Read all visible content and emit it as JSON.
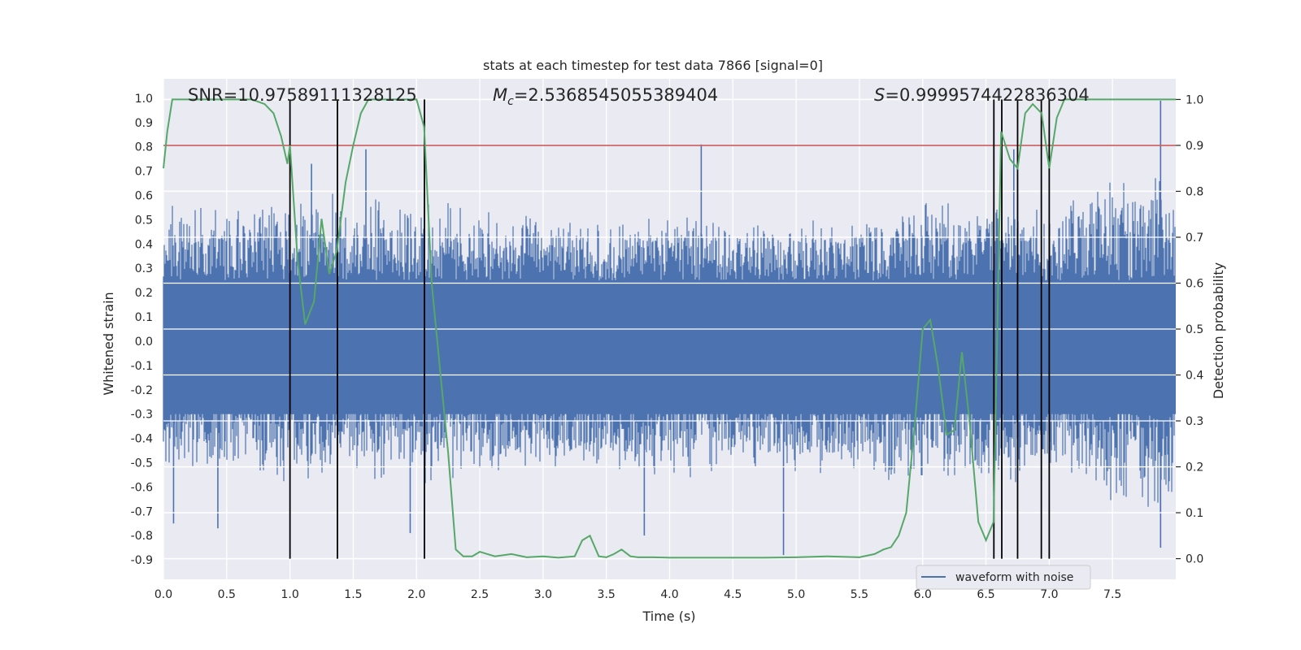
{
  "chart_data": {
    "type": "line",
    "title": "stats at each timestep for test data 7866 [signal=0]",
    "xlabel": "Time (s)",
    "ylabel": "Whitened strain",
    "y2label": "Detection probability",
    "xlim": [
      0.0,
      8.0
    ],
    "ylim": [
      -0.98,
      1.08
    ],
    "y2lim": [
      -0.045,
      1.045
    ],
    "xticks": [
      0.0,
      0.5,
      1.0,
      1.5,
      2.0,
      2.5,
      3.0,
      3.5,
      4.0,
      4.5,
      5.0,
      5.5,
      6.0,
      6.5,
      7.0,
      7.5
    ],
    "xtick_labels": [
      "0.0",
      "0.5",
      "1.0",
      "1.5",
      "2.0",
      "2.5",
      "3.0",
      "3.5",
      "4.0",
      "4.5",
      "5.0",
      "5.5",
      "6.0",
      "6.5",
      "7.0",
      "7.5"
    ],
    "yticks": [
      1.0,
      0.9,
      0.8,
      0.7,
      0.6,
      0.5,
      0.4,
      0.3,
      0.2,
      0.1,
      0.0,
      -0.1,
      -0.2,
      -0.3,
      -0.4,
      -0.5,
      -0.6,
      -0.7,
      -0.8,
      -0.9
    ],
    "ytick_labels": [
      "1.0",
      "0.9",
      "0.8",
      "0.7",
      "0.6",
      "0.5",
      "0.4",
      "0.3",
      "0.2",
      "0.1",
      "0.0",
      "-0.1",
      "-0.2",
      "-0.3",
      "-0.4",
      "-0.5",
      "-0.6",
      "-0.7",
      "-0.8",
      "-0.9"
    ],
    "y2ticks": [
      1.0,
      0.9,
      0.8,
      0.7,
      0.6,
      0.5,
      0.4,
      0.3,
      0.2,
      0.1,
      0.0
    ],
    "y2tick_labels": [
      "1.0",
      "0.9",
      "0.8",
      "0.7",
      "0.6",
      "0.5",
      "0.4",
      "0.3",
      "0.2",
      "0.1",
      "0.0"
    ],
    "threshold": 0.9,
    "annotations": {
      "snr": "SNR=10.97589111328125",
      "mc_symbol": "M",
      "mc_subscript": "c",
      "mc_value": "=2.5368545055389404",
      "s_symbol": "S",
      "s_value": "=0.9999574422836304"
    },
    "legend": {
      "label": "waveform with noise",
      "position": "lower-right"
    },
    "waveform_envelope": {
      "description_units": "whitened strain",
      "x": [
        0.0,
        0.5,
        1.0,
        1.5,
        2.0,
        2.5,
        3.0,
        3.5,
        4.0,
        4.5,
        5.0,
        5.5,
        6.0,
        6.5,
        7.0,
        7.5,
        8.0
      ],
      "upper": [
        0.6,
        0.55,
        0.6,
        0.62,
        0.62,
        0.55,
        0.52,
        0.5,
        0.55,
        0.5,
        0.52,
        0.55,
        0.6,
        0.62,
        0.6,
        0.7,
        0.75
      ],
      "lower": [
        -0.6,
        -0.55,
        -0.6,
        -0.6,
        -0.6,
        -0.58,
        -0.55,
        -0.55,
        -0.6,
        -0.55,
        -0.55,
        -0.58,
        -0.62,
        -0.65,
        -0.6,
        -0.7,
        -0.8
      ],
      "spikes": [
        {
          "x": 0.08,
          "y": -0.75
        },
        {
          "x": 0.43,
          "y": -0.77
        },
        {
          "x": 1.17,
          "y": 0.73
        },
        {
          "x": 1.6,
          "y": 0.79
        },
        {
          "x": 1.95,
          "y": -0.79
        },
        {
          "x": 4.25,
          "y": 0.81
        },
        {
          "x": 4.9,
          "y": -0.88
        },
        {
          "x": 7.88,
          "y": 0.99
        },
        {
          "x": 7.88,
          "y": -0.85
        },
        {
          "x": 6.72,
          "y": 0.79
        },
        {
          "x": 3.8,
          "y": -0.8
        }
      ]
    },
    "detection_probability": {
      "x": [
        0.0,
        0.03,
        0.07,
        0.12,
        0.2,
        0.3,
        0.5,
        0.7,
        0.8,
        0.87,
        0.93,
        0.98,
        1.0,
        1.06,
        1.12,
        1.19,
        1.25,
        1.31,
        1.37,
        1.44,
        1.5,
        1.56,
        1.62,
        1.7,
        1.8,
        1.9,
        1.96,
        2.0,
        2.06,
        2.12,
        2.19,
        2.25,
        2.31,
        2.37,
        2.44,
        2.5,
        2.56,
        2.62,
        2.75,
        2.87,
        3.0,
        3.12,
        3.25,
        3.31,
        3.37,
        3.44,
        3.5,
        3.56,
        3.62,
        3.69,
        3.75,
        3.87,
        4.0,
        4.25,
        4.5,
        4.75,
        5.0,
        5.25,
        5.5,
        5.62,
        5.69,
        5.75,
        5.81,
        5.87,
        5.94,
        6.0,
        6.06,
        6.12,
        6.19,
        6.25,
        6.31,
        6.37,
        6.44,
        6.5,
        6.56,
        6.62,
        6.69,
        6.75,
        6.81,
        6.87,
        6.94,
        7.0,
        7.06,
        7.12,
        7.19,
        7.25,
        7.5,
        8.0
      ],
      "y": [
        0.85,
        0.93,
        1.0,
        1.0,
        1.0,
        1.0,
        1.0,
        1.0,
        0.99,
        0.97,
        0.92,
        0.86,
        0.9,
        0.65,
        0.51,
        0.56,
        0.74,
        0.62,
        0.67,
        0.82,
        0.9,
        0.97,
        1.0,
        1.0,
        1.0,
        1.0,
        1.0,
        1.0,
        0.94,
        0.6,
        0.4,
        0.23,
        0.02,
        0.005,
        0.005,
        0.015,
        0.01,
        0.005,
        0.01,
        0.003,
        0.005,
        0.002,
        0.005,
        0.04,
        0.05,
        0.005,
        0.003,
        0.01,
        0.02,
        0.005,
        0.003,
        0.003,
        0.002,
        0.002,
        0.002,
        0.002,
        0.003,
        0.005,
        0.003,
        0.01,
        0.02,
        0.025,
        0.05,
        0.1,
        0.3,
        0.5,
        0.52,
        0.42,
        0.27,
        0.28,
        0.45,
        0.3,
        0.08,
        0.04,
        0.08,
        0.93,
        0.87,
        0.85,
        0.97,
        0.99,
        0.97,
        0.85,
        0.96,
        1.0,
        1.0,
        1.0,
        1.0,
        1.0
      ]
    },
    "vertical_lines_x": [
      1.0,
      1.375,
      2.0625,
      6.5625,
      6.625,
      6.75,
      6.9375,
      7.0
    ],
    "colors": {
      "background": "#eaeaf2",
      "grid": "#ffffff",
      "waveform": "#4c72b0",
      "probability": "#55a868",
      "threshold": "#c44e52",
      "vlines": "#000000",
      "text": "#262626"
    }
  }
}
